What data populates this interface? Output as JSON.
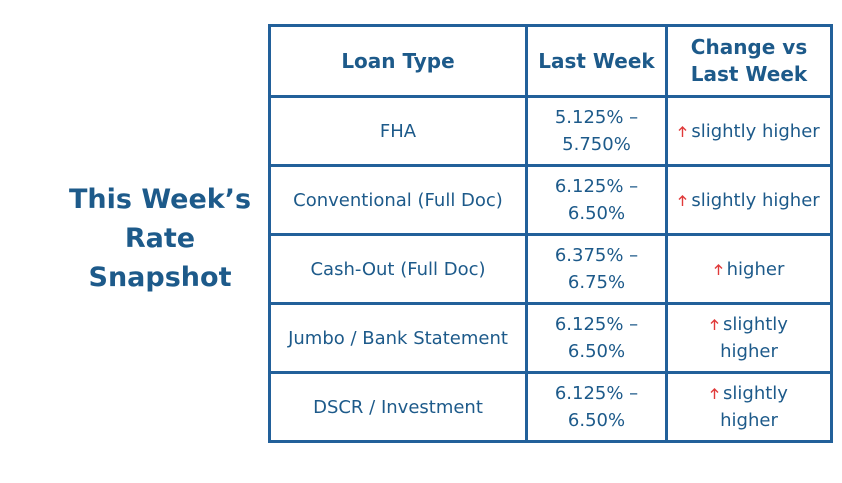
{
  "title": "This Week’s Rate Snapshot",
  "table": {
    "header": [
      "Loan Type",
      "Last Week",
      "Change vs Last Week"
    ],
    "rows": [
      [
        "FHA",
        "5.125% – 5.750%",
        "slightly higher"
      ],
      [
        "Conventional (Full Doc)",
        "6.125% – 6.50%",
        "slightly higher"
      ],
      [
        "Cash-Out (Full Doc)",
        "6.375% – 6.75%",
        "higher"
      ],
      [
        "Jumbo / Bank Statement",
        "6.125% – 6.50%",
        "slightly higher"
      ],
      [
        "DSCR / Investment",
        "6.125% – 6.50%",
        "slightly higher"
      ]
    ]
  }
}
